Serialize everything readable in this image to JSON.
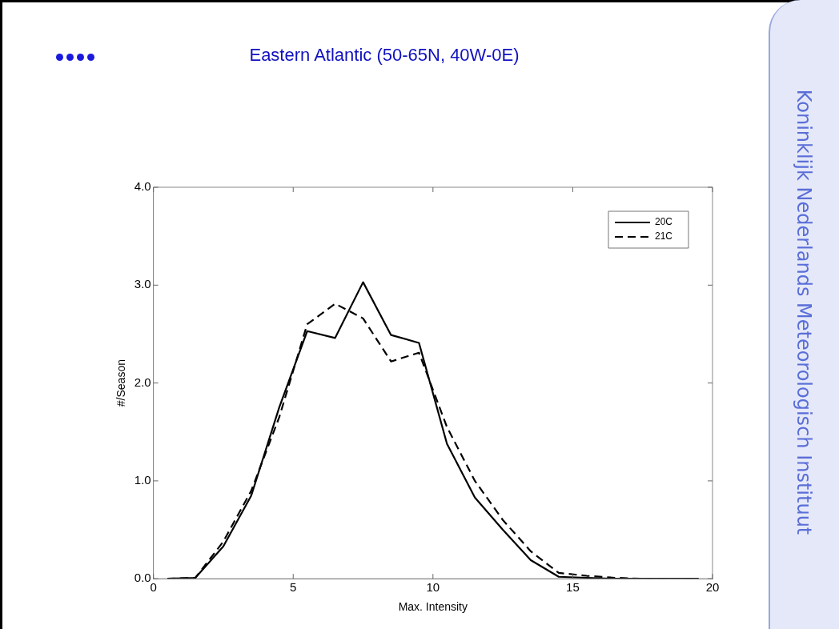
{
  "chart_data": {
    "type": "line",
    "title": "Eastern Atlantic (50-65N, 40W-0E)",
    "xlabel": "Max. Intensity",
    "ylabel": "#/Season",
    "x": [
      0.5,
      1.5,
      2.5,
      3.5,
      4.5,
      5.5,
      6.5,
      7.5,
      8.5,
      9.5,
      10.5,
      11.5,
      12.5,
      13.5,
      14.5,
      15.5,
      16.5,
      17.5,
      18.5,
      19.5
    ],
    "series": [
      {
        "name": "20C",
        "color": "#000000",
        "line_style": "solid",
        "values": [
          0,
          0.01,
          0.33,
          0.85,
          1.75,
          2.53,
          2.46,
          3.03,
          2.49,
          2.41,
          1.38,
          0.83,
          0.5,
          0.19,
          0.02,
          0.01,
          0,
          0,
          0,
          0
        ]
      },
      {
        "name": "21C",
        "color": "#000000",
        "line_style": "dashed",
        "values": [
          0,
          0.01,
          0.38,
          0.9,
          1.65,
          2.6,
          2.81,
          2.66,
          2.22,
          2.31,
          1.55,
          1.0,
          0.6,
          0.28,
          0.06,
          0.03,
          0.01,
          0,
          0,
          0
        ]
      }
    ],
    "xlim": [
      0,
      20
    ],
    "xticks": [
      0,
      5,
      10,
      15,
      20
    ],
    "ylim": [
      0,
      4
    ],
    "yticks": [
      {
        "value": 0,
        "label": "0.0"
      },
      {
        "value": 1,
        "label": "1.0"
      },
      {
        "value": 2,
        "label": "2.0"
      },
      {
        "value": 3,
        "label": "3.0"
      },
      {
        "value": 4,
        "label": "4.0"
      }
    ],
    "grid": false,
    "legend": "top right",
    "marker": "none",
    "annotations": [
      "Koninklijk Nederlands Meteorologisch Instituut"
    ]
  }
}
